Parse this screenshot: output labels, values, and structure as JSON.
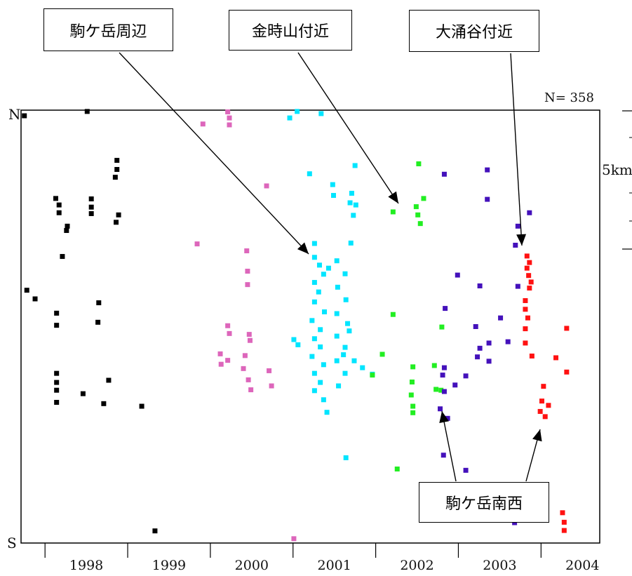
{
  "chart_data": {
    "type": "scatter",
    "title": "",
    "n_label": "N= 358",
    "y_top_label": "N",
    "y_bottom_label": "S",
    "scale_label": "5km",
    "xlim": [
      1997.5,
      2004.5
    ],
    "ylim": [
      0,
      10
    ],
    "x_tick_labels": [
      "1998",
      "1999",
      "2000",
      "2001",
      "2002",
      "2003",
      "2004"
    ],
    "series": [
      {
        "color": "#000000",
        "points": [
          [
            1997.54,
            9.87
          ],
          [
            1998.3,
            9.97
          ],
          [
            1997.57,
            5.84
          ],
          [
            1997.67,
            5.64
          ],
          [
            1998.0,
            6.62
          ],
          [
            1997.93,
            5.03
          ],
          [
            1997.93,
            5.31
          ],
          [
            1998.44,
            5.55
          ],
          [
            1998.43,
            5.1
          ],
          [
            1997.93,
            3.92
          ],
          [
            1997.93,
            3.71
          ],
          [
            1997.93,
            3.53
          ],
          [
            1997.93,
            3.25
          ],
          [
            1998.25,
            3.45
          ],
          [
            1998.56,
            3.76
          ],
          [
            1998.5,
            3.22
          ],
          [
            1998.96,
            3.16
          ],
          [
            1998.06,
            7.32
          ],
          [
            1998.05,
            7.22
          ],
          [
            1997.96,
            7.63
          ],
          [
            1997.96,
            7.81
          ],
          [
            1997.92,
            7.96
          ],
          [
            1998.35,
            7.95
          ],
          [
            1998.35,
            7.76
          ],
          [
            1998.35,
            7.61
          ],
          [
            1998.65,
            7.41
          ],
          [
            1998.68,
            7.58
          ],
          [
            1998.66,
            8.84
          ],
          [
            1998.66,
            8.63
          ],
          [
            1998.64,
            8.45
          ],
          [
            1999.12,
            0.28
          ]
        ]
      },
      {
        "color": "#dd66bb",
        "points": [
          [
            2000.0,
            9.96
          ],
          [
            2000.02,
            9.82
          ],
          [
            2000.02,
            9.66
          ],
          [
            1999.7,
            9.68
          ],
          [
            2000.47,
            8.25
          ],
          [
            1999.63,
            6.91
          ],
          [
            2000.23,
            6.75
          ],
          [
            2000.24,
            6.28
          ],
          [
            2000.24,
            5.97
          ],
          [
            2000.0,
            5.02
          ],
          [
            2000.02,
            4.84
          ],
          [
            2000.26,
            4.82
          ],
          [
            2000.27,
            4.68
          ],
          [
            1999.91,
            4.37
          ],
          [
            1999.92,
            4.13
          ],
          [
            2000.0,
            4.22
          ],
          [
            2000.21,
            4.33
          ],
          [
            2000.19,
            4.03
          ],
          [
            2000.25,
            3.77
          ],
          [
            2000.28,
            3.54
          ],
          [
            2000.5,
            3.98
          ],
          [
            2000.53,
            3.63
          ],
          [
            2000.8,
            0.1
          ]
        ]
      },
      {
        "color": "#00e5ff",
        "points": [
          [
            2000.84,
            9.97
          ],
          [
            2000.75,
            9.82
          ],
          [
            2001.13,
            9.92
          ],
          [
            2001.27,
            8.28
          ],
          [
            2000.99,
            8.53
          ],
          [
            2001.54,
            8.72
          ],
          [
            2001.5,
            8.08
          ],
          [
            2001.48,
            7.86
          ],
          [
            2001.55,
            7.81
          ],
          [
            2001.52,
            7.57
          ],
          [
            2001.28,
            8.03
          ],
          [
            2001.05,
            6.92
          ],
          [
            2001.22,
            6.35
          ],
          [
            2001.49,
            6.93
          ],
          [
            2001.05,
            6.6
          ],
          [
            2001.11,
            6.42
          ],
          [
            2001.16,
            6.21
          ],
          [
            2001.05,
            6.02
          ],
          [
            2001.1,
            5.8
          ],
          [
            2001.05,
            5.57
          ],
          [
            2001.17,
            5.34
          ],
          [
            2001.02,
            5.14
          ],
          [
            2001.12,
            4.93
          ],
          [
            2001.05,
            4.72
          ],
          [
            2001.12,
            4.53
          ],
          [
            2001.02,
            4.31
          ],
          [
            2001.16,
            4.12
          ],
          [
            2001.05,
            3.92
          ],
          [
            2001.12,
            3.71
          ],
          [
            2001.05,
            3.52
          ],
          [
            2001.16,
            3.31
          ],
          [
            2001.32,
            6.52
          ],
          [
            2001.42,
            6.22
          ],
          [
            2001.33,
            5.91
          ],
          [
            2001.43,
            5.62
          ],
          [
            2001.32,
            5.3
          ],
          [
            2001.45,
            5.07
          ],
          [
            2001.32,
            4.78
          ],
          [
            2001.42,
            4.52
          ],
          [
            2001.32,
            4.21
          ],
          [
            2001.42,
            3.92
          ],
          [
            2001.34,
            3.63
          ],
          [
            2001.2,
            3.02
          ],
          [
            2001.4,
            4.35
          ],
          [
            2001.53,
            4.21
          ],
          [
            2001.47,
            4.9
          ],
          [
            2001.63,
            4.05
          ],
          [
            2001.75,
            3.9
          ],
          [
            2000.85,
            4.58
          ],
          [
            2000.8,
            4.7
          ],
          [
            2001.43,
            1.97
          ]
        ]
      },
      {
        "color": "#22ee22",
        "points": [
          [
            2002.28,
            7.77
          ],
          [
            2002.3,
            7.58
          ],
          [
            2002.37,
            7.96
          ],
          [
            2002.0,
            7.65
          ],
          [
            2002.31,
            8.76
          ],
          [
            2002.33,
            7.38
          ],
          [
            2002.0,
            5.28
          ],
          [
            2002.59,
            4.99
          ],
          [
            2001.87,
            4.36
          ],
          [
            2001.75,
            3.88
          ],
          [
            2002.24,
            4.07
          ],
          [
            2002.5,
            4.1
          ],
          [
            2002.22,
            3.42
          ],
          [
            2002.24,
            3.16
          ],
          [
            2002.24,
            3.01
          ],
          [
            2002.23,
            3.72
          ],
          [
            2002.52,
            3.55
          ],
          [
            2002.58,
            3.53
          ],
          [
            2002.05,
            1.71
          ]
        ]
      },
      {
        "color": "#4411bb",
        "points": [
          [
            2003.14,
            8.62
          ],
          [
            2002.62,
            8.52
          ],
          [
            2003.14,
            7.94
          ],
          [
            2003.65,
            7.63
          ],
          [
            2003.51,
            7.32
          ],
          [
            2003.48,
            6.88
          ],
          [
            2002.78,
            6.19
          ],
          [
            2003.05,
            5.94
          ],
          [
            2003.51,
            5.93
          ],
          [
            2002.63,
            5.42
          ],
          [
            2003.0,
            5.0
          ],
          [
            2003.3,
            5.2
          ],
          [
            2003.05,
            4.5
          ],
          [
            2003.16,
            4.62
          ],
          [
            2003.39,
            4.65
          ],
          [
            2003.02,
            4.3
          ],
          [
            2003.16,
            4.2
          ],
          [
            2002.62,
            4.05
          ],
          [
            2002.6,
            3.88
          ],
          [
            2002.88,
            3.86
          ],
          [
            2002.75,
            3.65
          ],
          [
            2002.62,
            3.5
          ],
          [
            2002.57,
            3.1
          ],
          [
            2002.66,
            2.88
          ],
          [
            2002.61,
            2.03
          ],
          [
            2002.88,
            1.68
          ],
          [
            2003.47,
            0.47
          ]
        ]
      },
      {
        "color": "#ff1111",
        "points": [
          [
            2003.62,
            6.63
          ],
          [
            2003.65,
            6.48
          ],
          [
            2003.62,
            6.35
          ],
          [
            2003.64,
            6.18
          ],
          [
            2003.67,
            6.03
          ],
          [
            2003.65,
            5.89
          ],
          [
            2003.6,
            5.6
          ],
          [
            2003.6,
            5.4
          ],
          [
            2003.63,
            5.2
          ],
          [
            2003.6,
            4.95
          ],
          [
            2003.6,
            4.62
          ],
          [
            2003.68,
            4.32
          ],
          [
            2004.1,
            4.96
          ],
          [
            2003.97,
            4.28
          ],
          [
            2004.1,
            3.95
          ],
          [
            2003.82,
            3.62
          ],
          [
            2003.8,
            3.28
          ],
          [
            2003.88,
            3.18
          ],
          [
            2003.78,
            3.04
          ],
          [
            2003.84,
            2.92
          ],
          [
            2004.05,
            0.7
          ],
          [
            2004.07,
            0.48
          ],
          [
            2004.07,
            0.29
          ]
        ]
      }
    ],
    "callouts": [
      {
        "label": "駒ケ岳周辺"
      },
      {
        "label": "金時山付近"
      },
      {
        "label": "大涌谷付近"
      },
      {
        "label": "駒ケ岳南西"
      }
    ]
  }
}
